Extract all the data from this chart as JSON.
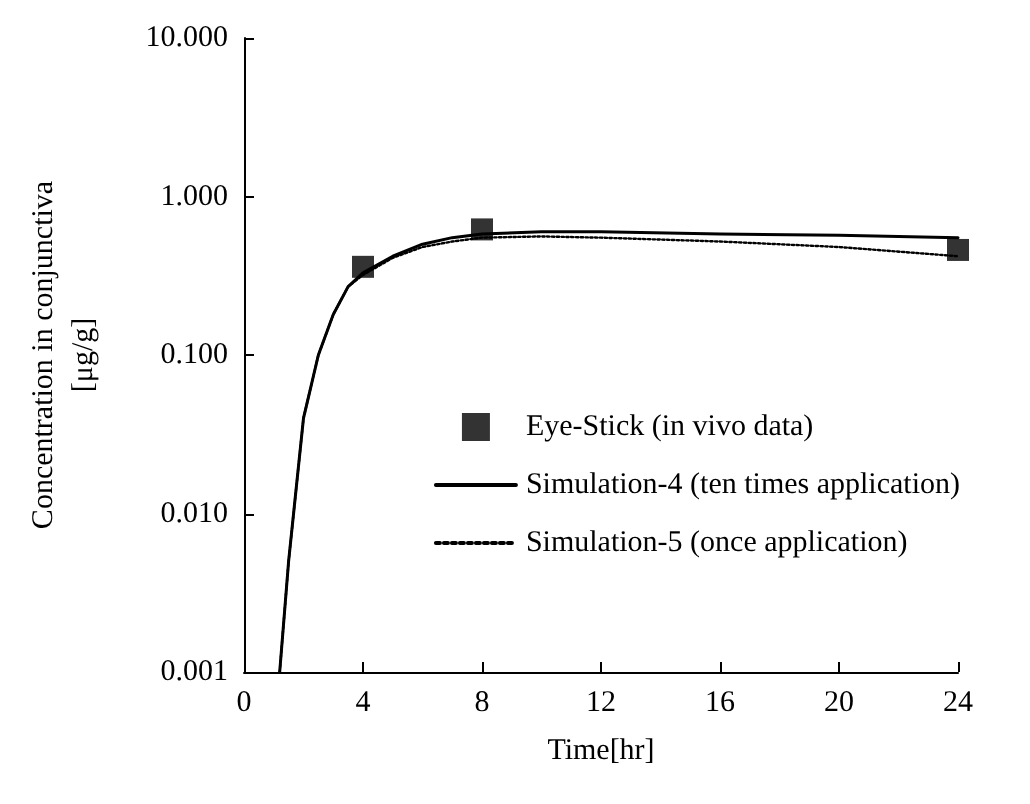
{
  "chart_data": {
    "type": "line",
    "xlabel": "Time[hr]",
    "ylabel": "Concentration in conjunctiva\n[μg/g]",
    "log": "y",
    "xlim": [
      0,
      24
    ],
    "xticks": [
      0,
      4,
      8,
      12,
      16,
      20,
      24
    ],
    "ylim": [
      0.001,
      10
    ],
    "yticks": [
      {
        "value": 0.001,
        "label": "0.001"
      },
      {
        "value": 0.01,
        "label": "0.010"
      },
      {
        "value": 0.1,
        "label": "0.100"
      },
      {
        "value": 1,
        "label": "1.000"
      },
      {
        "value": 10,
        "label": "10.000"
      }
    ],
    "grid": false,
    "legend": "bottom right",
    "series": [
      {
        "name": "Eye-Stick (in vivo data)",
        "type": "scatter",
        "marker": "square",
        "color": "#000000",
        "x": [
          4,
          8,
          24
        ],
        "values": [
          0.36,
          0.62,
          0.46
        ]
      },
      {
        "name": "Simulation-4 (ten times application)",
        "line_style": "solid",
        "color": "#000000",
        "x": [
          1.2,
          1.5,
          2,
          2.5,
          3,
          3.5,
          4,
          5,
          6,
          7,
          8,
          10,
          12,
          16,
          20,
          24
        ],
        "values": [
          0.001,
          0.005,
          0.04,
          0.1,
          0.18,
          0.27,
          0.33,
          0.42,
          0.5,
          0.55,
          0.58,
          0.6,
          0.6,
          0.58,
          0.57,
          0.55
        ]
      },
      {
        "name": "Simulation-5 (once application)",
        "line_style": "dotted",
        "color": "#000000",
        "x": [
          1.2,
          1.5,
          2,
          2.5,
          3,
          3.5,
          4,
          5,
          6,
          7,
          8,
          10,
          12,
          16,
          20,
          24
        ],
        "values": [
          0.001,
          0.005,
          0.04,
          0.1,
          0.18,
          0.27,
          0.32,
          0.41,
          0.48,
          0.52,
          0.55,
          0.56,
          0.55,
          0.52,
          0.48,
          0.42
        ]
      }
    ]
  }
}
